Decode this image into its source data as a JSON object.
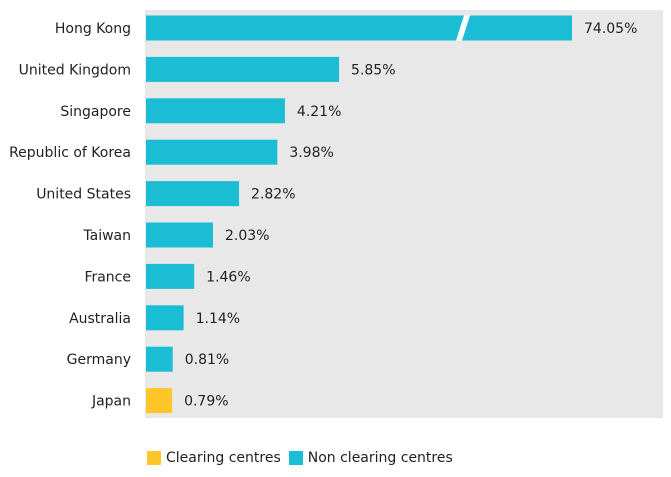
{
  "chart_data": {
    "type": "bar",
    "orientation": "horizontal",
    "categories": [
      "Hong Kong",
      "United Kingdom",
      "Singapore",
      "Republic of Korea",
      "United States",
      "Taiwan",
      "France",
      "Australia",
      "Germany",
      "Japan"
    ],
    "values": [
      74.05,
      5.85,
      4.21,
      3.98,
      2.82,
      2.03,
      1.46,
      1.14,
      0.81,
      0.79
    ],
    "value_labels": [
      "74.05%",
      "5.85%",
      "4.21%",
      "3.98%",
      "2.82%",
      "2.03%",
      "1.46%",
      "1.14%",
      "0.81%",
      "0.79%"
    ],
    "groups": [
      "Non clearing centres",
      "Non clearing centres",
      "Non clearing centres",
      "Non clearing centres",
      "Non clearing centres",
      "Non clearing centres",
      "Non clearing centres",
      "Non clearing centres",
      "Non clearing centres",
      "Clearing centres"
    ],
    "axis_break": true,
    "grid": false,
    "legend_position": "bottom-left"
  },
  "legend": [
    {
      "label": "Clearing centres",
      "color": "#ffc629"
    },
    {
      "label": "Non clearing centres",
      "color": "#1bbdd4"
    }
  ],
  "colors": {
    "panel": "#e8e8e9",
    "clearing": "#ffc629",
    "non_clearing": "#1bbdd4",
    "break_gap": "#ffffff"
  }
}
